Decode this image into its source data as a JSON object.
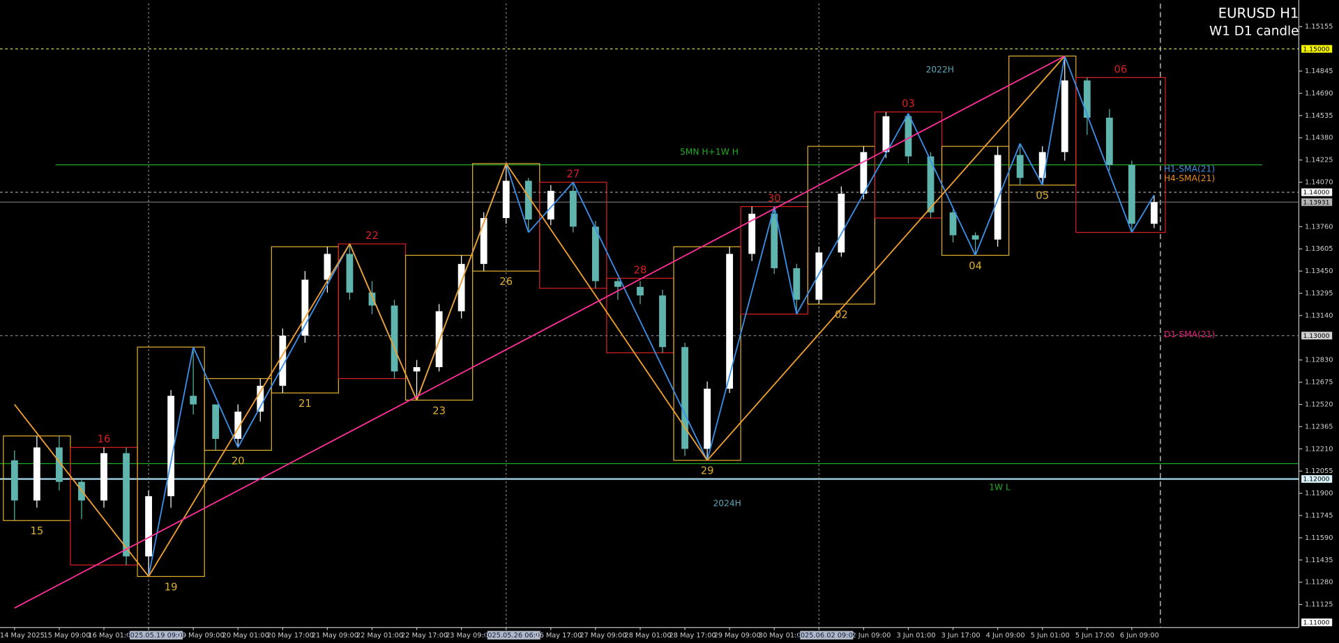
{
  "chart_data": {
    "type": "candlestick",
    "title": "EURUSD H1",
    "subtitle": "W1 D1 candle",
    "categories": [
      "14 May 2025",
      null,
      "15 May 09:00",
      null,
      "16 May 01:00",
      null,
      "2025.05.19 09:00",
      null,
      "19 May 09:00",
      null,
      "20 May 01:00",
      null,
      "20 May 17:00",
      null,
      "21 May 09:00",
      null,
      "22 May 01:00",
      null,
      "22 May 17:00",
      null,
      "23 May 09:00",
      null,
      "2025.05.26 06:00",
      null,
      "26 May 17:00",
      null,
      "27 May 09:00",
      null,
      "28 May 01:00",
      null,
      "28 May 17:00",
      null,
      "29 May 09:00",
      null,
      "30 May 01:00",
      null,
      "2025.06.02 09:00",
      null,
      "2 Jun 09:00",
      null,
      "3 Jun 01:00",
      null,
      "3 Jun 17:00",
      null,
      "4 Jun 09:00",
      null,
      "5 Jun 01:00",
      null,
      "5 Jun 17:00",
      null,
      "6 Jun 09:00",
      null
    ],
    "open": [
      1.1213,
      1.1185,
      1.1222,
      1.1198,
      1.1185,
      1.1218,
      1.1146,
      1.1188,
      1.1258,
      1.1252,
      1.1228,
      1.1247,
      1.1265,
      1.13,
      1.1339,
      1.1357,
      1.133,
      1.1321,
      1.1275,
      1.1278,
      1.1317,
      1.135,
      1.1382,
      1.1408,
      1.1381,
      1.1401,
      1.1376,
      1.1338,
      1.1334,
      1.1328,
      1.1292,
      1.1221,
      1.1263,
      1.1357,
      1.1385,
      1.1347,
      1.1325,
      1.1358,
      1.1399,
      1.1428,
      1.1453,
      1.1425,
      1.1386,
      1.137,
      1.1367,
      1.1426,
      1.141,
      1.1428,
      1.1478,
      1.1452,
      1.1419,
      1.1378
    ],
    "high": [
      1.122,
      1.123,
      1.123,
      1.12,
      1.1222,
      1.1222,
      1.1192,
      1.1262,
      1.1292,
      1.125,
      1.1252,
      1.127,
      1.1305,
      1.1345,
      1.1362,
      1.1364,
      1.1338,
      1.1325,
      1.1283,
      1.1322,
      1.1356,
      1.1386,
      1.142,
      1.141,
      1.1405,
      1.1407,
      1.138,
      1.134,
      1.1338,
      1.1332,
      1.1295,
      1.1268,
      1.1362,
      1.139,
      1.139,
      1.135,
      1.1362,
      1.1404,
      1.1432,
      1.1456,
      1.1455,
      1.1428,
      1.1388,
      1.1372,
      1.1432,
      1.1434,
      1.1432,
      1.1495,
      1.148,
      1.1458,
      1.1422,
      1.1398
    ],
    "low": [
      1.1171,
      1.118,
      1.1192,
      1.1172,
      1.118,
      1.114,
      1.1132,
      1.118,
      1.1245,
      1.122,
      1.1222,
      1.124,
      1.126,
      1.1295,
      1.133,
      1.1325,
      1.1315,
      1.127,
      1.1255,
      1.1275,
      1.1312,
      1.1345,
      1.1378,
      1.1372,
      1.1377,
      1.1372,
      1.1333,
      1.1325,
      1.1322,
      1.1288,
      1.1216,
      1.1213,
      1.126,
      1.1352,
      1.1343,
      1.1315,
      1.1322,
      1.1355,
      1.1395,
      1.1424,
      1.142,
      1.1382,
      1.1365,
      1.1356,
      1.1362,
      1.1405,
      1.1405,
      1.1422,
      1.144,
      1.1415,
      1.1372,
      1.1375
    ],
    "close": [
      1.1185,
      1.1222,
      1.1198,
      1.1185,
      1.1218,
      1.1146,
      1.1188,
      1.1258,
      1.1252,
      1.1228,
      1.1247,
      1.1265,
      1.13,
      1.1339,
      1.1357,
      1.133,
      1.1321,
      1.1275,
      1.1278,
      1.1317,
      1.135,
      1.1382,
      1.1408,
      1.1381,
      1.1401,
      1.1376,
      1.1338,
      1.1334,
      1.1328,
      1.1292,
      1.1221,
      1.1263,
      1.1357,
      1.1385,
      1.1347,
      1.1325,
      1.1358,
      1.1399,
      1.1428,
      1.1453,
      1.1425,
      1.1386,
      1.137,
      1.1367,
      1.1426,
      1.141,
      1.1428,
      1.1478,
      1.1452,
      1.1419,
      1.1378,
      1.13931
    ],
    "bull_color": "#ffffff",
    "bear_color": "#5fb4ad",
    "overlays": [
      {
        "color": "#3a8fe8",
        "values": [
          null,
          null,
          null,
          null,
          null,
          null,
          1.1132,
          null,
          1.1292,
          null,
          1.1222,
          null,
          null,
          null,
          null,
          1.1364,
          null,
          null,
          1.1255,
          null,
          null,
          null,
          1.142,
          1.1372,
          null,
          1.1407,
          null,
          null,
          null,
          null,
          null,
          1.1213,
          null,
          null,
          1.139,
          1.1315,
          null,
          null,
          null,
          null,
          1.1455,
          null,
          null,
          1.1356,
          null,
          1.1434,
          1.1405,
          1.1495,
          null,
          null,
          1.1372,
          1.1398
        ]
      },
      {
        "color": "#f0a030",
        "values": [
          1.1252,
          null,
          null,
          null,
          null,
          null,
          1.1132,
          null,
          null,
          null,
          null,
          null,
          null,
          null,
          null,
          1.1364,
          null,
          null,
          1.1255,
          null,
          null,
          null,
          1.142,
          null,
          null,
          null,
          null,
          null,
          null,
          null,
          null,
          1.1213,
          null,
          null,
          null,
          null,
          null,
          null,
          null,
          null,
          null,
          null,
          null,
          null,
          null,
          null,
          null,
          1.1495,
          null,
          null,
          null,
          null
        ]
      },
      {
        "color": "#ff2f9a",
        "values": [
          1.111,
          null,
          null,
          null,
          null,
          null,
          null,
          null,
          null,
          null,
          null,
          null,
          null,
          null,
          null,
          null,
          null,
          null,
          null,
          null,
          null,
          null,
          null,
          null,
          null,
          null,
          null,
          null,
          null,
          null,
          null,
          null,
          null,
          null,
          null,
          null,
          null,
          null,
          null,
          null,
          null,
          null,
          null,
          null,
          null,
          null,
          null,
          1.1495,
          null,
          null,
          null,
          null
        ]
      }
    ],
    "days": [
      {
        "label": "15",
        "bullish": true
      },
      {
        "label": "16",
        "bullish": false
      },
      {
        "label": "19",
        "bullish": true
      },
      {
        "label": "20",
        "bullish": true
      },
      {
        "label": "21",
        "bullish": true
      },
      {
        "label": "22",
        "bullish": false
      },
      {
        "label": "23",
        "bullish": true
      },
      {
        "label": "26",
        "bullish": true
      },
      {
        "label": "27",
        "bullish": false
      },
      {
        "label": "28",
        "bullish": false
      },
      {
        "label": "29",
        "bullish": true
      },
      {
        "label": "30",
        "bullish": false
      },
      {
        "label": "02",
        "bullish": true
      },
      {
        "label": "03",
        "bullish": false
      },
      {
        "label": "04",
        "bullish": true
      },
      {
        "label": "05",
        "bullish": true
      },
      {
        "label": "06",
        "bullish": false
      }
    ],
    "day_bull_color": "#e0b030",
    "day_bear_color": "#d82020",
    "levels": [
      {
        "value": 1.15,
        "label": "1.15000",
        "color": "#c8e060",
        "line": "dash",
        "box": "#f4f400"
      },
      {
        "value": 1.14,
        "label": "1.14000",
        "color": "#a0a0a0",
        "line": "dash",
        "box": "#ffffff"
      },
      {
        "value": 1.13931,
        "label": "1.13931",
        "color": "#707070",
        "line": "solid",
        "box": "#b4b4b4"
      },
      {
        "value": 1.13,
        "label": "1.13000",
        "color": "#808080",
        "line": "dash",
        "box": "#d0d0d0"
      },
      {
        "value": 1.12,
        "label": "1.12000",
        "color": "#9fd3e6",
        "line": "solid",
        "box": "#d8f0f8"
      },
      {
        "value": 1.11,
        "label": "1.11000",
        "color": "#000000",
        "line": "none",
        "box": "#ffffff"
      }
    ],
    "lines": [
      {
        "value": 1.14191,
        "name": "5MN H+1W H",
        "color": "#22aa22"
      },
      {
        "value": 1.12107,
        "name": "1W L",
        "color": "#22aa22"
      }
    ],
    "annotations": [
      {
        "text": "2022H",
        "color": "#5aa8b8"
      },
      {
        "text": "2024H",
        "color": "#5aa8b8"
      },
      {
        "text": "H1-SMA(21)",
        "color": "#3b8fe0"
      },
      {
        "text": "H4-SMA(21)",
        "color": "#e88a20"
      },
      {
        "text": "D1-SMA(21)",
        "color": "#e0207a"
      }
    ],
    "ylim": [
      1.10964,
      1.1534
    ],
    "yticks": [
      1.15155,
      1.14845,
      {
        "value": 1.1469,
        "label": "1.14690"
      },
      1.14535,
      {
        "value": 1.1438,
        "label": "1.14380"
      },
      1.14225,
      {
        "value": 1.1407,
        "label": "1.14070"
      },
      {
        "value": 1.1376,
        "label": "1.13760"
      },
      1.13605,
      {
        "value": 1.1345,
        "label": "1.13450"
      },
      1.13295,
      {
        "value": 1.1314,
        "label": "1.13140"
      },
      {
        "value": 1.1283,
        "label": "1.12830"
      },
      1.12675,
      {
        "value": 1.1252,
        "label": "1.12520"
      },
      1.12365,
      {
        "value": 1.1221,
        "label": "1.12210"
      },
      1.12055,
      {
        "value": 1.119,
        "label": "1.11900"
      },
      1.11745,
      {
        "value": 1.1159,
        "label": "1.11590"
      },
      1.11435,
      {
        "value": 1.1128,
        "label": "1.11280"
      },
      1.11125
    ]
  }
}
